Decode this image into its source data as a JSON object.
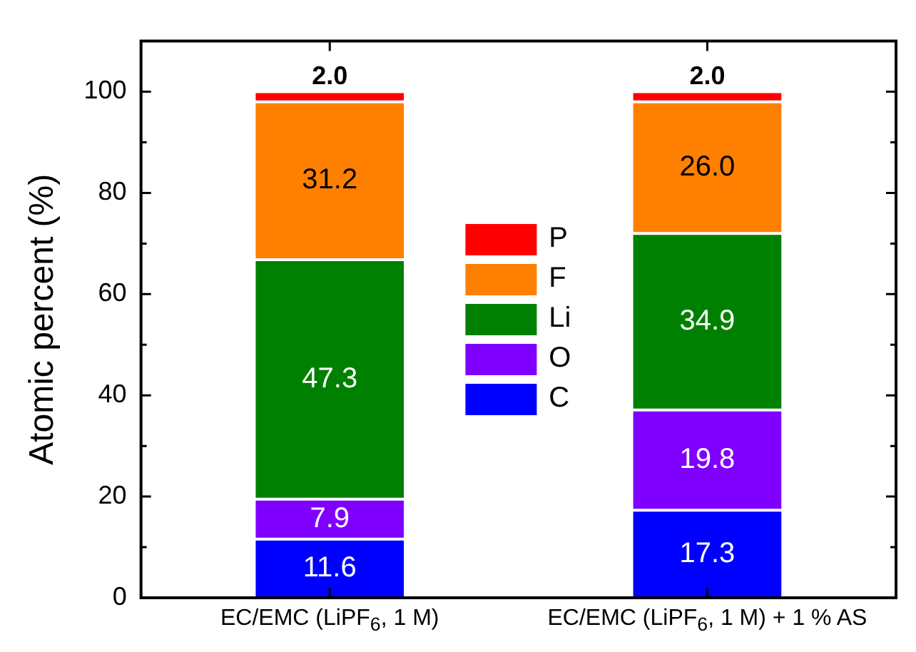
{
  "chart_data": {
    "type": "bar",
    "stacked": true,
    "ylabel": "Atomic percent (%)",
    "categories": [
      "EC/EMC (LiPF$_{6}$, 1 M)",
      "EC/EMC (LiPF$_{6}$, 1 M) + 1 % AS"
    ],
    "series": [
      {
        "name": "C",
        "color": "#0000ff",
        "values": [
          11.6,
          17.3
        ],
        "value_labels": [
          "11.6",
          "17.3"
        ]
      },
      {
        "name": "O",
        "color": "#8000ff",
        "values": [
          7.9,
          19.8
        ],
        "value_labels": [
          "7.9",
          "19.8"
        ]
      },
      {
        "name": "Li",
        "color": "#008000",
        "values": [
          47.3,
          34.9
        ],
        "value_labels": [
          "47.3",
          "34.9"
        ]
      },
      {
        "name": "F",
        "color": "#ff8000",
        "values": [
          31.2,
          26
        ],
        "value_labels": [
          "31.2",
          "26.0"
        ]
      },
      {
        "name": "P",
        "color": "#ff0000",
        "values": [
          2,
          2
        ],
        "value_labels": [
          "2.0",
          "2.0"
        ]
      }
    ],
    "ylim": [
      0,
      110
    ],
    "yticks": [
      0,
      {
        "value": 10,
        "label": null
      },
      20,
      {
        "value": 30,
        "label": null
      },
      40,
      {
        "value": 50,
        "label": null
      },
      60,
      {
        "value": 70,
        "label": null
      },
      80,
      {
        "value": 90,
        "label": null
      },
      100,
      {
        "value": 110,
        "label": null
      }
    ],
    "grid": false,
    "legend": "center"
  }
}
